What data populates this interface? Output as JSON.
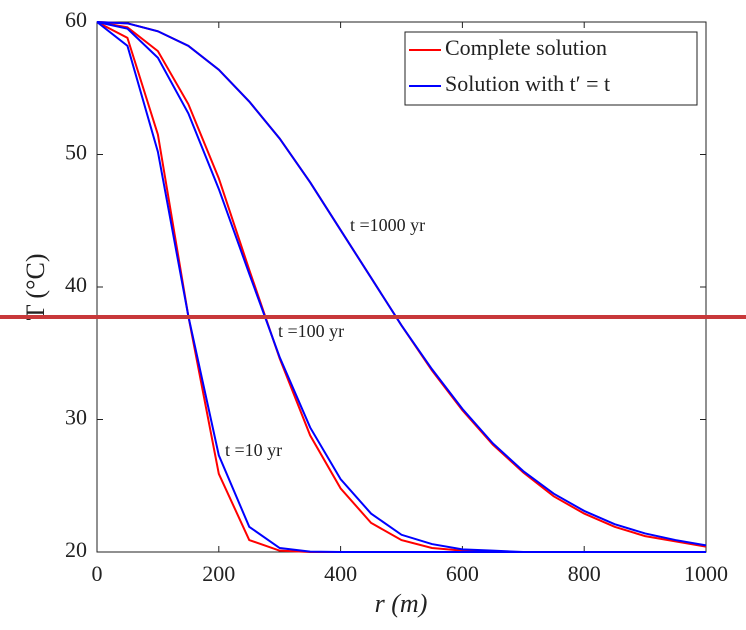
{
  "chart_data": {
    "type": "line",
    "x_label": "r (m)",
    "y_label": "T (°C)",
    "x": [
      0,
      50,
      100,
      150,
      200,
      250,
      300,
      350,
      400,
      450,
      500,
      550,
      600,
      650,
      700,
      750,
      800,
      850,
      900,
      950,
      1000
    ],
    "series": [
      {
        "name": "Complete solution",
        "color": "#ff0000",
        "values": [
          [
            60,
            58.8,
            51.5,
            37.8,
            25.9,
            20.9,
            20.1,
            20.0,
            20,
            20,
            20,
            20,
            20,
            20,
            20,
            20,
            20,
            20,
            20,
            20,
            20
          ],
          [
            60,
            59.6,
            57.8,
            53.8,
            48.2,
            41.3,
            34.6,
            28.8,
            24.8,
            22.2,
            20.9,
            20.3,
            20.1,
            20,
            20,
            20,
            20,
            20,
            20,
            20,
            20
          ],
          [
            60,
            59.9,
            59.3,
            58.2,
            56.4,
            54.0,
            51.2,
            47.9,
            44.3,
            40.7,
            37.1,
            33.7,
            30.7,
            28.1,
            26.0,
            24.2,
            22.9,
            21.9,
            21.2,
            20.8,
            20.4
          ]
        ]
      },
      {
        "name": "Solution with t′ = t",
        "color": "#0000ff",
        "values": [
          [
            60,
            58.2,
            50.2,
            37.8,
            27.3,
            21.9,
            20.3,
            20.03,
            20,
            20,
            20,
            20,
            20,
            20,
            20,
            20,
            20,
            20,
            20,
            20,
            20
          ],
          [
            60,
            59.5,
            57.3,
            53.1,
            47.4,
            41.0,
            34.7,
            29.4,
            25.5,
            22.9,
            21.3,
            20.6,
            20.2,
            20.1,
            20.0,
            20,
            20,
            20,
            20,
            20,
            20
          ],
          [
            60,
            59.9,
            59.3,
            58.2,
            56.4,
            54.0,
            51.2,
            47.9,
            44.3,
            40.7,
            37.1,
            33.8,
            30.8,
            28.2,
            26.1,
            24.4,
            23.1,
            22.1,
            21.4,
            20.9,
            20.5
          ]
        ]
      }
    ],
    "annotations": [
      "t =1000 yr",
      "t =100 yr",
      "t =10 yr"
    ],
    "hline": {
      "value": 37.74,
      "color": "#c8383a"
    },
    "xlim": [
      0,
      1000
    ],
    "ylim": [
      20,
      60
    ],
    "xticks": [
      0,
      200,
      400,
      600,
      800,
      1000
    ],
    "yticks": [
      20,
      30,
      40,
      50,
      60
    ],
    "grid": false,
    "legend": "upper right"
  }
}
